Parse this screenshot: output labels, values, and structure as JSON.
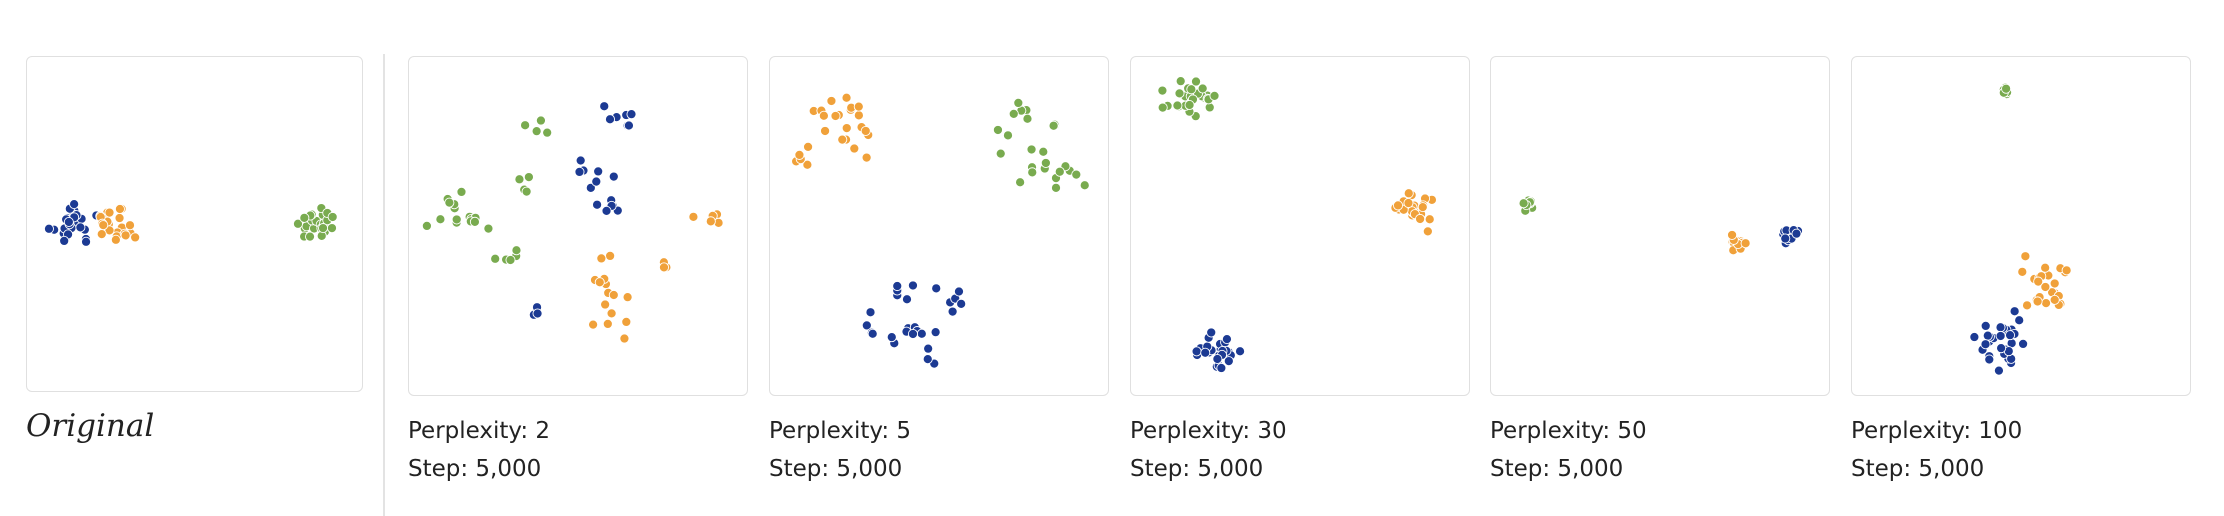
{
  "colors": {
    "blue": "#1c3a93",
    "orange": "#f0a13a",
    "green": "#79ab4f"
  },
  "original": {
    "label": "Original"
  },
  "captions": [
    {
      "perplexity": "Perplexity: 2",
      "step": "Step: 5,000"
    },
    {
      "perplexity": "Perplexity: 5",
      "step": "Step: 5,000"
    },
    {
      "perplexity": "Perplexity: 30",
      "step": "Step: 5,000"
    },
    {
      "perplexity": "Perplexity: 50",
      "step": "Step: 5,000"
    },
    {
      "perplexity": "Perplexity: 100",
      "step": "Step: 5,000"
    }
  ],
  "chart_data": [
    {
      "type": "scatter",
      "panel": "Original",
      "xlim": [
        0,
        1
      ],
      "ylim": [
        0,
        1
      ],
      "groups": [
        {
          "color": "blue",
          "center": [
            0.13,
            0.5
          ],
          "spread": [
            0.035,
            0.035
          ],
          "count": 28
        },
        {
          "color": "orange",
          "center": [
            0.27,
            0.5
          ],
          "spread": [
            0.035,
            0.028
          ],
          "count": 22
        },
        {
          "color": "green",
          "center": [
            0.87,
            0.5
          ],
          "spread": [
            0.032,
            0.028
          ],
          "count": 24
        }
      ]
    },
    {
      "type": "scatter",
      "panel": "Perplexity: 2",
      "xlim": [
        0,
        1
      ],
      "ylim": [
        0,
        1
      ],
      "groups": [
        {
          "color": "green",
          "center": [
            0.38,
            0.21
          ],
          "spread": [
            0.02,
            0.02
          ],
          "count": 4
        },
        {
          "color": "green",
          "center": [
            0.34,
            0.37
          ],
          "spread": [
            0.012,
            0.018
          ],
          "count": 4
        },
        {
          "color": "green",
          "center": [
            0.13,
            0.46
          ],
          "spread": [
            0.035,
            0.035
          ],
          "count": 10
        },
        {
          "color": "green",
          "center": [
            0.19,
            0.5
          ],
          "spread": [
            0.025,
            0.035
          ],
          "count": 5
        },
        {
          "color": "green",
          "center": [
            0.31,
            0.59
          ],
          "spread": [
            0.025,
            0.015
          ],
          "count": 5
        },
        {
          "color": "blue",
          "center": [
            0.62,
            0.18
          ],
          "spread": [
            0.035,
            0.025
          ],
          "count": 8
        },
        {
          "color": "blue",
          "center": [
            0.54,
            0.35
          ],
          "spread": [
            0.03,
            0.025
          ],
          "count": 7
        },
        {
          "color": "blue",
          "center": [
            0.6,
            0.44
          ],
          "spread": [
            0.03,
            0.02
          ],
          "count": 6
        },
        {
          "color": "blue",
          "center": [
            0.37,
            0.75
          ],
          "spread": [
            0.012,
            0.02
          ],
          "count": 3
        },
        {
          "color": "orange",
          "center": [
            0.88,
            0.47
          ],
          "spread": [
            0.025,
            0.015
          ],
          "count": 5
        },
        {
          "color": "orange",
          "center": [
            0.76,
            0.62
          ],
          "spread": [
            0.012,
            0.015
          ],
          "count": 3
        },
        {
          "color": "orange",
          "center": [
            0.58,
            0.65
          ],
          "spread": [
            0.03,
            0.045
          ],
          "count": 8
        },
        {
          "color": "orange",
          "center": [
            0.62,
            0.78
          ],
          "spread": [
            0.035,
            0.04
          ],
          "count": 7
        }
      ]
    },
    {
      "type": "scatter",
      "panel": "Perplexity: 5",
      "xlim": [
        0,
        1
      ],
      "ylim": [
        0,
        1
      ],
      "groups": [
        {
          "color": "orange",
          "center": [
            0.2,
            0.18
          ],
          "spread": [
            0.045,
            0.045
          ],
          "count": 14
        },
        {
          "color": "orange",
          "center": [
            0.27,
            0.22
          ],
          "spread": [
            0.015,
            0.055
          ],
          "count": 6
        },
        {
          "color": "orange",
          "center": [
            0.11,
            0.3
          ],
          "spread": [
            0.02,
            0.025
          ],
          "count": 5
        },
        {
          "color": "green",
          "center": [
            0.75,
            0.16
          ],
          "spread": [
            0.025,
            0.015
          ],
          "count": 5
        },
        {
          "color": "green",
          "center": [
            0.69,
            0.26
          ],
          "spread": [
            0.01,
            0.02
          ],
          "count": 3
        },
        {
          "color": "green",
          "center": [
            0.84,
            0.21
          ],
          "spread": [
            0.01,
            0.015
          ],
          "count": 3
        },
        {
          "color": "green",
          "center": [
            0.85,
            0.33
          ],
          "spread": [
            0.05,
            0.04
          ],
          "count": 15
        },
        {
          "color": "blue",
          "center": [
            0.4,
            0.7
          ],
          "spread": [
            0.03,
            0.03
          ],
          "count": 5
        },
        {
          "color": "blue",
          "center": [
            0.53,
            0.7
          ],
          "spread": [
            0.025,
            0.035
          ],
          "count": 6
        },
        {
          "color": "blue",
          "center": [
            0.36,
            0.81
          ],
          "spread": [
            0.04,
            0.025
          ],
          "count": 8
        },
        {
          "color": "blue",
          "center": [
            0.45,
            0.83
          ],
          "spread": [
            0.04,
            0.035
          ],
          "count": 8
        }
      ]
    },
    {
      "type": "scatter",
      "panel": "Perplexity: 30",
      "xlim": [
        0,
        1
      ],
      "ylim": [
        0,
        1
      ],
      "groups": [
        {
          "color": "green",
          "center": [
            0.17,
            0.12
          ],
          "spread": [
            0.035,
            0.025
          ],
          "count": 30
        },
        {
          "color": "orange",
          "center": [
            0.84,
            0.45
          ],
          "spread": [
            0.028,
            0.03
          ],
          "count": 26
        },
        {
          "color": "blue",
          "center": [
            0.26,
            0.87
          ],
          "spread": [
            0.03,
            0.025
          ],
          "count": 26
        }
      ]
    },
    {
      "type": "scatter",
      "panel": "Perplexity: 50",
      "xlim": [
        0,
        1
      ],
      "ylim": [
        0,
        1
      ],
      "groups": [
        {
          "color": "green",
          "center": [
            0.11,
            0.44
          ],
          "spread": [
            0.01,
            0.01
          ],
          "count": 10
        },
        {
          "color": "orange",
          "center": [
            0.73,
            0.55
          ],
          "spread": [
            0.015,
            0.012
          ],
          "count": 14
        },
        {
          "color": "blue",
          "center": [
            0.89,
            0.53
          ],
          "spread": [
            0.012,
            0.012
          ],
          "count": 14
        }
      ]
    },
    {
      "type": "scatter",
      "panel": "Perplexity: 100",
      "xlim": [
        0,
        1
      ],
      "ylim": [
        0,
        1
      ],
      "groups": [
        {
          "color": "green",
          "center": [
            0.45,
            0.1
          ],
          "spread": [
            0.004,
            0.005
          ],
          "count": 6
        },
        {
          "color": "orange",
          "center": [
            0.57,
            0.67
          ],
          "spread": [
            0.035,
            0.045
          ],
          "count": 24
        },
        {
          "color": "blue",
          "center": [
            0.44,
            0.84
          ],
          "spread": [
            0.045,
            0.04
          ],
          "count": 30
        }
      ]
    }
  ]
}
